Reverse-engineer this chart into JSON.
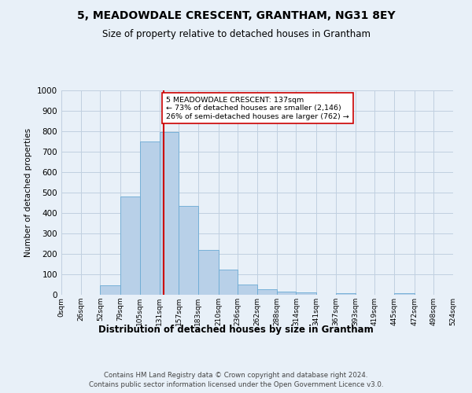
{
  "title1": "5, MEADOWDALE CRESCENT, GRANTHAM, NG31 8EY",
  "title2": "Size of property relative to detached houses in Grantham",
  "xlabel": "Distribution of detached houses by size in Grantham",
  "ylabel": "Number of detached properties",
  "footer1": "Contains HM Land Registry data © Crown copyright and database right 2024.",
  "footer2": "Contains public sector information licensed under the Open Government Licence v3.0.",
  "bar_edges": [
    0,
    26,
    52,
    79,
    105,
    131,
    157,
    183,
    210,
    236,
    262,
    288,
    314,
    341,
    367,
    393,
    419,
    445,
    472,
    498,
    524
  ],
  "bar_heights": [
    0,
    0,
    45,
    480,
    750,
    795,
    435,
    220,
    125,
    50,
    28,
    15,
    10,
    0,
    8,
    0,
    0,
    8,
    0,
    0
  ],
  "bar_color": "#b8d0e8",
  "bar_edge_color": "#6aaad4",
  "grid_color": "#c0d0e0",
  "property_line_x": 137,
  "property_line_color": "#cc0000",
  "annotation_text": "5 MEADOWDALE CRESCENT: 137sqm\n← 73% of detached houses are smaller (2,146)\n26% of semi-detached houses are larger (762) →",
  "annotation_box_color": "#ffffff",
  "annotation_box_edge_color": "#cc0000",
  "ylim": [
    0,
    1000
  ],
  "yticks": [
    0,
    100,
    200,
    300,
    400,
    500,
    600,
    700,
    800,
    900,
    1000
  ],
  "bg_color": "#e8f0f8",
  "plot_bg_color": "#e8f0f8"
}
